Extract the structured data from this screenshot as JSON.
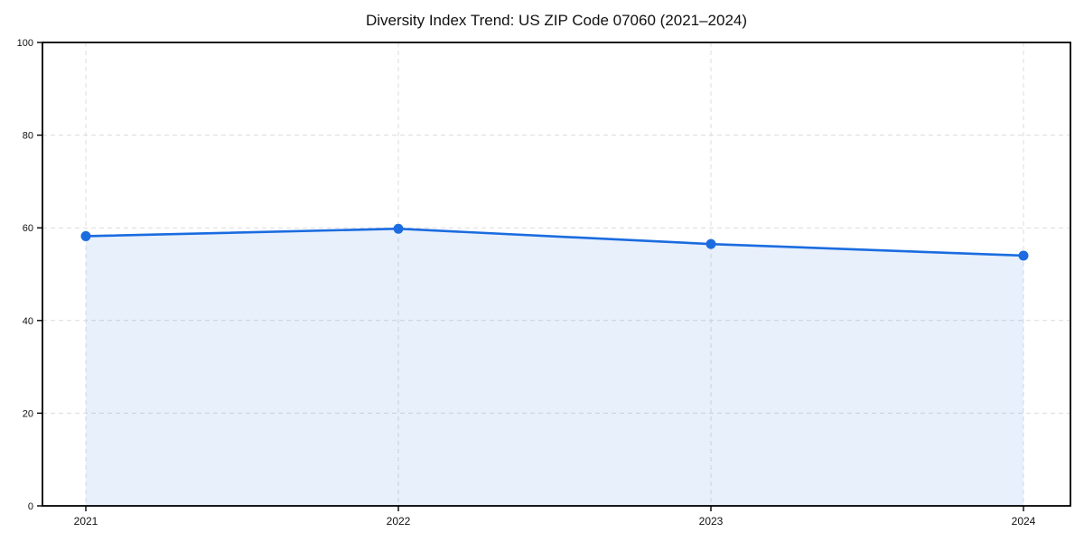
{
  "chart_data": {
    "type": "line",
    "title": "Diversity Index Trend: US ZIP Code 07060 (2021–2024)",
    "categories": [
      "2021",
      "2022",
      "2023",
      "2024"
    ],
    "series": [
      {
        "name": "Diversity Index",
        "values": [
          58.2,
          59.8,
          56.5,
          54.0
        ]
      }
    ],
    "xlabel": "",
    "ylabel": "",
    "ylim": [
      0,
      100
    ],
    "yticks": [
      0,
      20,
      40,
      60,
      80,
      100
    ],
    "grid": true,
    "grid_style": "dashed",
    "legend_position": "none",
    "area_fill": true,
    "colors": {
      "line": "#1b6ce0",
      "marker": "#1b6ce0",
      "area_fill_opacity": 0.1,
      "grid": "#dcdcdc",
      "axis": "#000000",
      "tick_text": "#111111",
      "background": "#ffffff"
    }
  }
}
